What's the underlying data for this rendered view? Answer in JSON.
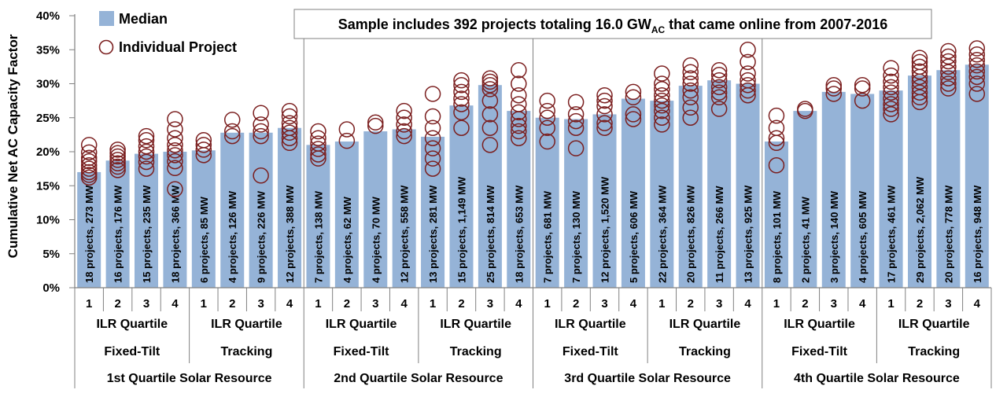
{
  "colors": {
    "bar": "#95B3D7",
    "marker": "#7B1F1F",
    "axis": "#808080",
    "grid": "#808080"
  },
  "chart_data": {
    "type": "bar",
    "ylabel": "Cumulative Net AC Capacity Factor",
    "ylim": [
      0,
      40
    ],
    "y_ticks": [
      "0%",
      "5%",
      "10%",
      "15%",
      "20%",
      "25%",
      "30%",
      "35%",
      "40%"
    ],
    "grid": false,
    "legend": {
      "placement": "top-left",
      "median_label": "Median",
      "project_label": "Individual Project"
    },
    "note": {
      "prefix": "Sample includes 392 projects totaling 16.0 GW",
      "subscript": "AC",
      "suffix": " that came online from 2007-2016"
    },
    "ilr_label": "ILR Quartile",
    "resource_groups": [
      "1st Quartile Solar Resource",
      "2nd Quartile Solar Resource",
      "3rd Quartile Solar Resource",
      "4th Quartile Solar Resource"
    ],
    "mount_types": [
      "Fixed-Tilt",
      "Tracking"
    ],
    "ilr_categories": [
      "1",
      "2",
      "3",
      "4"
    ],
    "series": [
      {
        "name": "Median",
        "values": [
          17.0,
          18.7,
          19.7,
          20.0,
          20.2,
          22.8,
          22.8,
          23.5,
          21.0,
          21.5,
          23.0,
          23.3,
          22.2,
          26.8,
          29.8,
          26.0,
          25.0,
          24.8,
          25.5,
          27.8,
          27.5,
          29.7,
          30.5,
          30.0,
          21.5,
          26.0,
          28.8,
          28.5,
          29.0,
          31.2,
          32.0,
          32.8
        ]
      }
    ],
    "bar_labels": [
      "18 projects, 273 MW",
      "16 projects, 176 MW",
      "15 projects, 235 MW",
      "18 projects, 366 MW",
      "6 projects, 85 MW",
      "4 projects, 126 MW",
      "9 projects, 226 MW",
      "12 projects, 388 MW",
      "7 projects, 138 MW",
      "4 projects, 62 MW",
      "4 projects, 70 MW",
      "12 projects, 558 MW",
      "13 projects, 281 MW",
      "15 projects, 1,149 MW",
      "25 projects, 814 MW",
      "18 projects, 653 MW",
      "7 projects, 681 MW",
      "7 projects, 130 MW",
      "12 projects, 1,520 MW",
      "5 projects, 606 MW",
      "22 projects, 364 MW",
      "20 projects, 826 MW",
      "11 projects, 266 MW",
      "13 projects, 925 MW",
      "8 projects, 101 MW",
      "2 projects, 41 MW",
      "3 projects, 140 MW",
      "4 projects, 605 MW",
      "17 projects, 461 MW",
      "29 projects, 2,062 MW",
      "20 projects, 778 MW",
      "16 projects, 948 MW"
    ],
    "project_points": [
      [
        21.0,
        19.9,
        19.1,
        18.6,
        18.0,
        17.5,
        17.0,
        16.6,
        16.2
      ],
      [
        20.3,
        19.8,
        19.3,
        18.8,
        18.3,
        17.8,
        17.3
      ],
      [
        22.3,
        21.7,
        20.8,
        20.0,
        19.3,
        18.5,
        17.5
      ],
      [
        24.8,
        23.3,
        22.0,
        21.0,
        20.2,
        19.5,
        18.6,
        17.6,
        14.5
      ],
      [
        21.7,
        21.0,
        20.3,
        19.5
      ],
      [
        24.7,
        23.0,
        22.3
      ],
      [
        25.7,
        24.0,
        23.0,
        22.3,
        16.5
      ],
      [
        26.0,
        25.2,
        24.2,
        23.5,
        22.8,
        22.0,
        21.3
      ],
      [
        23.0,
        22.0,
        21.2,
        20.4,
        19.6,
        19.0
      ],
      [
        23.3,
        21.6
      ],
      [
        24.3,
        23.8
      ],
      [
        26.0,
        25.0,
        24.0,
        23.0,
        22.3
      ],
      [
        28.5,
        25.2,
        23.5,
        22.0,
        20.5,
        19.0,
        17.5
      ],
      [
        30.5,
        29.8,
        28.8,
        27.8,
        27.0,
        25.8,
        23.5
      ],
      [
        30.8,
        30.3,
        29.8,
        29.2,
        27.5,
        25.5,
        23.5,
        21.0
      ],
      [
        32.0,
        30.0,
        28.3,
        27.0,
        25.8,
        24.8,
        23.8,
        23.0,
        22.0
      ],
      [
        27.5,
        26.0,
        25.0,
        23.5,
        21.5
      ],
      [
        27.3,
        25.5,
        24.5,
        23.5,
        20.5
      ],
      [
        28.3,
        27.5,
        26.7,
        25.5,
        24.2,
        23.5
      ],
      [
        28.8,
        28.0,
        25.5,
        24.8
      ],
      [
        31.5,
        30.0,
        29.2,
        28.3,
        27.5,
        26.8,
        26.0,
        25.0,
        24.0
      ],
      [
        32.7,
        31.7,
        30.8,
        30.0,
        29.0,
        28.0,
        26.5,
        25.0
      ],
      [
        32.0,
        31.3,
        30.5,
        29.5,
        28.7,
        28.0,
        26.3
      ],
      [
        35.0,
        33.2,
        31.5,
        30.5,
        29.8,
        29.0,
        28.3
      ],
      [
        25.3,
        23.5,
        22.0,
        21.3,
        18.0
      ],
      [
        26.3,
        26.0
      ],
      [
        29.8,
        29.3,
        28.5
      ],
      [
        29.8,
        29.3,
        27.5
      ],
      [
        32.3,
        31.2,
        30.3,
        29.5,
        28.7,
        27.8,
        27.0,
        26.3,
        25.5
      ],
      [
        33.8,
        33.2,
        32.5,
        31.8,
        31.0,
        30.3,
        29.5,
        28.7,
        28.0,
        27.3
      ],
      [
        34.8,
        34.0,
        33.3,
        32.5,
        31.7,
        30.8,
        30.0,
        29.3
      ],
      [
        35.2,
        34.3,
        33.5,
        32.7,
        31.8,
        31.0,
        30.0,
        28.5
      ]
    ]
  }
}
